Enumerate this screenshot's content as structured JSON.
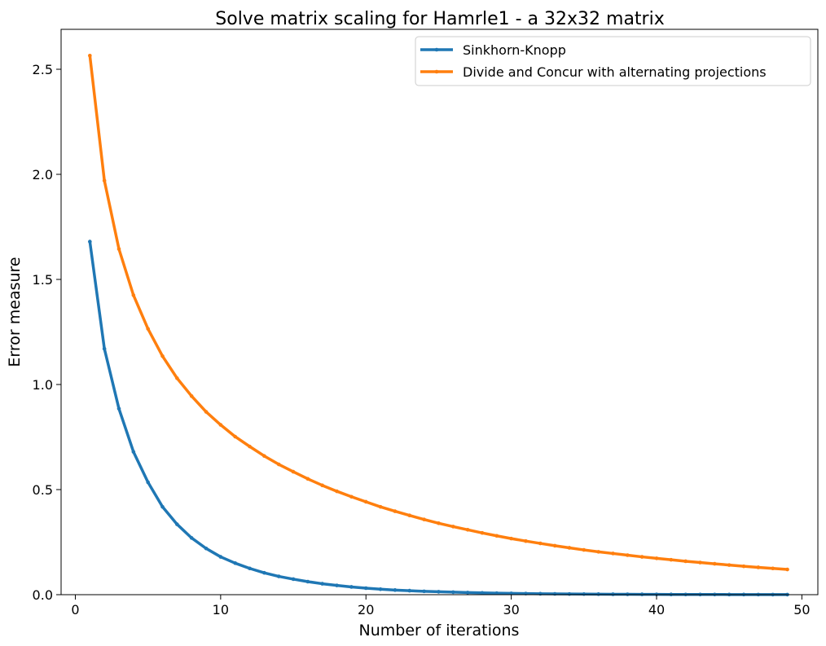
{
  "chart_data": {
    "type": "line",
    "title": "Solve matrix scaling for Hamrle1 - a 32x32 matrix",
    "xlabel": "Number of iterations",
    "ylabel": "Error measure",
    "xlim": [
      -0.98,
      51.1
    ],
    "ylim": [
      0,
      2.69
    ],
    "xticks": [
      0,
      10,
      20,
      30,
      40,
      50
    ],
    "yticks": [
      0.0,
      0.5,
      1.0,
      1.5,
      2.0,
      2.5
    ],
    "xtick_labels": [
      "0",
      "10",
      "20",
      "30",
      "40",
      "50"
    ],
    "ytick_labels": [
      "0.0",
      "0.5",
      "1.0",
      "1.5",
      "2.0",
      "2.5"
    ],
    "grid": false,
    "legend_position": "top-right",
    "x": [
      1,
      2,
      3,
      4,
      5,
      6,
      7,
      8,
      9,
      10,
      11,
      12,
      13,
      14,
      15,
      16,
      17,
      18,
      19,
      20,
      21,
      22,
      23,
      24,
      25,
      26,
      27,
      28,
      29,
      30,
      31,
      32,
      33,
      34,
      35,
      36,
      37,
      38,
      39,
      40,
      41,
      42,
      43,
      44,
      45,
      46,
      47,
      48,
      49
    ],
    "series": [
      {
        "name": "Sinkhorn-Knopp",
        "color": "#1f77b4",
        "values": [
          1.68,
          1.17,
          0.885,
          0.68,
          0.535,
          0.418,
          0.335,
          0.27,
          0.22,
          0.18,
          0.15,
          0.125,
          0.104,
          0.087,
          0.074,
          0.062,
          0.052,
          0.044,
          0.037,
          0.031,
          0.026,
          0.022,
          0.019,
          0.016,
          0.014,
          0.012,
          0.01,
          0.0085,
          0.0072,
          0.0062,
          0.0053,
          0.0045,
          0.0039,
          0.0033,
          0.0029,
          0.0025,
          0.0021,
          0.0018,
          0.0016,
          0.0014,
          0.0012,
          0.001,
          0.0009,
          0.0008,
          0.0007,
          0.0006,
          0.0005,
          0.0004,
          0.0004
        ]
      },
      {
        "name": "Divide and Concur with alternating projections",
        "color": "#ff7f0e",
        "values": [
          2.565,
          1.97,
          1.645,
          1.425,
          1.265,
          1.135,
          1.03,
          0.945,
          0.87,
          0.808,
          0.752,
          0.705,
          0.66,
          0.62,
          0.585,
          0.551,
          0.52,
          0.492,
          0.466,
          0.442,
          0.418,
          0.397,
          0.377,
          0.358,
          0.34,
          0.324,
          0.309,
          0.294,
          0.28,
          0.267,
          0.255,
          0.244,
          0.233,
          0.223,
          0.213,
          0.204,
          0.196,
          0.188,
          0.18,
          0.173,
          0.166,
          0.159,
          0.153,
          0.147,
          0.141,
          0.135,
          0.13,
          0.125,
          0.12
        ]
      }
    ]
  }
}
